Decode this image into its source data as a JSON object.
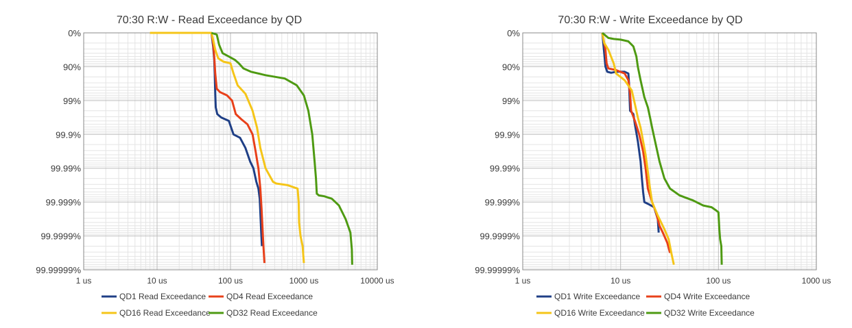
{
  "chart_data": [
    {
      "type": "line",
      "title": "70:30 R:W - Read Exceedance by QD",
      "x_scale": "log",
      "y_scale": "exceedance-nines",
      "xlim": [
        1,
        10000
      ],
      "ylim": [
        0,
        7
      ],
      "x_ticks": [
        "1 us",
        "10 us",
        "100 us",
        "1000 us",
        "10000 us"
      ],
      "y_ticks": [
        "0%",
        "90%",
        "99%",
        "99.9%",
        "99.99%",
        "99.999%",
        "99.9999%",
        "99.99999%"
      ],
      "grid": true,
      "legend_position": "bottom",
      "series": [
        {
          "name": "QD1 Read Exceedance",
          "color": "#1f3f86",
          "points": [
            [
              55,
              0
            ],
            [
              58,
              0.4
            ],
            [
              60,
              0.8
            ],
            [
              61,
              1.2
            ],
            [
              62,
              1.8
            ],
            [
              63,
              2.2
            ],
            [
              66,
              2.4
            ],
            [
              75,
              2.5
            ],
            [
              95,
              2.6
            ],
            [
              110,
              3.0
            ],
            [
              135,
              3.1
            ],
            [
              160,
              3.4
            ],
            [
              185,
              3.8
            ],
            [
              205,
              4.0
            ],
            [
              225,
              4.4
            ],
            [
              240,
              4.6
            ],
            [
              250,
              4.9
            ],
            [
              256,
              5.4
            ],
            [
              262,
              5.9
            ],
            [
              268,
              6.3
            ]
          ]
        },
        {
          "name": "QD4 Read Exceedance",
          "color": "#e8401a",
          "points": [
            [
              55,
              0
            ],
            [
              58,
              0.3
            ],
            [
              60,
              0.7
            ],
            [
              62,
              1.2
            ],
            [
              65,
              1.65
            ],
            [
              72,
              1.75
            ],
            [
              90,
              1.85
            ],
            [
              105,
              2.0
            ],
            [
              118,
              2.4
            ],
            [
              140,
              2.55
            ],
            [
              170,
              2.7
            ],
            [
              200,
              3.0
            ],
            [
              220,
              3.5
            ],
            [
              240,
              4.0
            ],
            [
              255,
              4.6
            ],
            [
              265,
              5.2
            ],
            [
              275,
              5.9
            ],
            [
              283,
              6.4
            ],
            [
              290,
              6.8
            ]
          ]
        },
        {
          "name": "QD16 Read Exceedance",
          "color": "#f5c518",
          "points": [
            [
              8,
              0
            ],
            [
              14,
              0
            ],
            [
              55,
              0
            ],
            [
              58,
              0.2
            ],
            [
              62,
              0.5
            ],
            [
              68,
              0.75
            ],
            [
              80,
              0.85
            ],
            [
              100,
              0.9
            ],
            [
              110,
              1.2
            ],
            [
              125,
              1.55
            ],
            [
              160,
              1.8
            ],
            [
              200,
              2.3
            ],
            [
              230,
              2.8
            ],
            [
              255,
              3.4
            ],
            [
              300,
              4.0
            ],
            [
              380,
              4.4
            ],
            [
              420,
              4.45
            ],
            [
              600,
              4.5
            ],
            [
              820,
              4.6
            ],
            [
              850,
              5.0
            ],
            [
              860,
              5.6
            ],
            [
              900,
              6.0
            ],
            [
              960,
              6.3
            ],
            [
              1000,
              6.8
            ]
          ]
        },
        {
          "name": "QD32 Read Exceedance",
          "color": "#4e9a12",
          "points": [
            [
              55,
              0
            ],
            [
              65,
              0.05
            ],
            [
              70,
              0.35
            ],
            [
              78,
              0.6
            ],
            [
              95,
              0.7
            ],
            [
              115,
              0.8
            ],
            [
              130,
              0.9
            ],
            [
              150,
              1.05
            ],
            [
              190,
              1.15
            ],
            [
              300,
              1.25
            ],
            [
              550,
              1.35
            ],
            [
              800,
              1.55
            ],
            [
              1000,
              1.85
            ],
            [
              1150,
              2.3
            ],
            [
              1300,
              3.0
            ],
            [
              1400,
              3.8
            ],
            [
              1460,
              4.3
            ],
            [
              1500,
              4.75
            ],
            [
              1600,
              4.8
            ],
            [
              1900,
              4.83
            ],
            [
              2400,
              4.9
            ],
            [
              3000,
              5.1
            ],
            [
              3700,
              5.5
            ],
            [
              4300,
              5.9
            ],
            [
              4500,
              6.4
            ],
            [
              4550,
              6.85
            ]
          ]
        }
      ]
    },
    {
      "type": "line",
      "title": "70:30 R:W - Write Exceedance by QD",
      "x_scale": "log",
      "y_scale": "exceedance-nines",
      "xlim": [
        1,
        1000
      ],
      "ylim": [
        0,
        7
      ],
      "x_ticks": [
        "1 us",
        "10 us",
        "100 us",
        "1000 us"
      ],
      "y_ticks": [
        "0%",
        "90%",
        "99%",
        "99.9%",
        "99.99%",
        "99.999%",
        "99.9999%",
        "99.99999%"
      ],
      "grid": true,
      "legend_position": "bottom",
      "series": [
        {
          "name": "QD1 Write Exceedance",
          "color": "#1f3f86",
          "points": [
            [
              6.5,
              0
            ],
            [
              6.8,
              0.6
            ],
            [
              7.0,
              1.0
            ],
            [
              7.3,
              1.15
            ],
            [
              8,
              1.18
            ],
            [
              9,
              1.15
            ],
            [
              11,
              1.15
            ],
            [
              12,
              1.2
            ],
            [
              12.2,
              1.5
            ],
            [
              12.5,
              2.3
            ],
            [
              13.5,
              2.4
            ],
            [
              14,
              2.7
            ],
            [
              15,
              3.2
            ],
            [
              16,
              3.8
            ],
            [
              16.5,
              4.3
            ],
            [
              17,
              4.7
            ],
            [
              17.5,
              5.0
            ],
            [
              19,
              5.05
            ],
            [
              22,
              5.15
            ],
            [
              24,
              5.5
            ],
            [
              24.5,
              5.9
            ]
          ]
        },
        {
          "name": "QD4 Write Exceedance",
          "color": "#e8401a",
          "points": [
            [
              6.5,
              0
            ],
            [
              7,
              0.5
            ],
            [
              7.2,
              0.9
            ],
            [
              7.5,
              1.05
            ],
            [
              9,
              1.1
            ],
            [
              11,
              1.2
            ],
            [
              12,
              1.4
            ],
            [
              12.5,
              1.8
            ],
            [
              12.8,
              2.3
            ],
            [
              14,
              2.6
            ],
            [
              15.5,
              3.0
            ],
            [
              17,
              3.5
            ],
            [
              18,
              4.0
            ],
            [
              19,
              4.6
            ],
            [
              21,
              5.0
            ],
            [
              23,
              5.3
            ],
            [
              25,
              5.7
            ],
            [
              27,
              5.9
            ],
            [
              30,
              6.2
            ],
            [
              32,
              6.5
            ]
          ]
        },
        {
          "name": "QD16 Write Exceedance",
          "color": "#f5c518",
          "points": [
            [
              6.5,
              0
            ],
            [
              6.8,
              0.3
            ],
            [
              7.5,
              0.5
            ],
            [
              8.5,
              0.9
            ],
            [
              9,
              1.2
            ],
            [
              11,
              1.4
            ],
            [
              13,
              1.7
            ],
            [
              14,
              2.1
            ],
            [
              15,
              2.5
            ],
            [
              16,
              2.8
            ],
            [
              17,
              3.2
            ],
            [
              18,
              3.6
            ],
            [
              19,
              4.1
            ],
            [
              20,
              4.6
            ],
            [
              21,
              5.0
            ],
            [
              24,
              5.4
            ],
            [
              28,
              5.8
            ],
            [
              31,
              6.1
            ],
            [
              33,
              6.5
            ],
            [
              35,
              6.85
            ]
          ]
        },
        {
          "name": "QD32 Write Exceedance",
          "color": "#4e9a12",
          "points": [
            [
              6.5,
              0
            ],
            [
              7.5,
              0.15
            ],
            [
              8.5,
              0.18
            ],
            [
              10,
              0.2
            ],
            [
              12,
              0.25
            ],
            [
              13.5,
              0.4
            ],
            [
              14.5,
              0.7
            ],
            [
              15,
              1.0
            ],
            [
              16,
              1.4
            ],
            [
              17.5,
              1.9
            ],
            [
              19,
              2.2
            ],
            [
              20,
              2.5
            ],
            [
              21,
              2.8
            ],
            [
              22.5,
              3.2
            ],
            [
              25,
              3.8
            ],
            [
              28,
              4.3
            ],
            [
              32,
              4.6
            ],
            [
              40,
              4.8
            ],
            [
              55,
              4.95
            ],
            [
              70,
              5.1
            ],
            [
              85,
              5.15
            ],
            [
              95,
              5.25
            ],
            [
              100,
              5.3
            ],
            [
              102,
              5.8
            ],
            [
              104,
              6.1
            ],
            [
              107,
              6.3
            ],
            [
              108,
              6.85
            ]
          ]
        }
      ]
    }
  ]
}
